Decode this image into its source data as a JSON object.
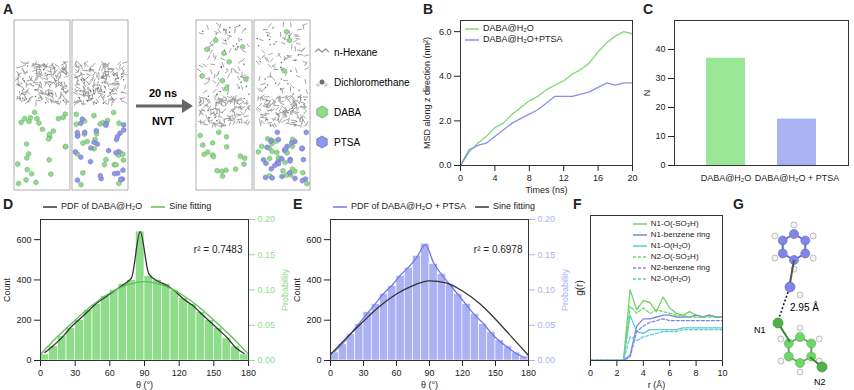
{
  "chart_data": [
    {
      "type": "diagram",
      "title": "A",
      "annotations": [
        "20 ns",
        "NVT"
      ],
      "items": [
        {
          "name": "n-Hexane",
          "color": "#9a9a9a"
        },
        {
          "name": "Dichloromethane",
          "color": "#6e6e6e"
        },
        {
          "name": "DABA",
          "color": "#8fdc8a"
        },
        {
          "name": "PTSA",
          "color": "#8f97ec"
        }
      ]
    },
    {
      "type": "line",
      "title": "B",
      "xlabel": "Times (ns)",
      "ylabel": "MSD along z direction (nm²)",
      "x": [
        0,
        1,
        2,
        3,
        4,
        5,
        6,
        7,
        8,
        9,
        10,
        11,
        12,
        13,
        14,
        15,
        16,
        17,
        18,
        19,
        20
      ],
      "xlim": [
        0,
        20
      ],
      "xticks": [
        0,
        4,
        8,
        12,
        16,
        20
      ],
      "ylim": [
        0,
        6.5
      ],
      "yticks": [
        0,
        2,
        4,
        6
      ],
      "legend": "top-left",
      "series": [
        {
          "name": "DABA@H₂O",
          "color": "#7ddc6f",
          "line_style": "solid",
          "values": [
            0,
            0.6,
            1.0,
            1.3,
            1.7,
            1.9,
            2.3,
            2.6,
            2.9,
            3.1,
            3.4,
            3.6,
            3.8,
            4.1,
            4.3,
            4.6,
            5.1,
            5.5,
            5.8,
            6.0,
            5.9
          ]
        },
        {
          "name": "DABA@H₂O+PTSA",
          "color": "#8a8ee6",
          "line_style": "solid",
          "values": [
            0,
            0.7,
            0.9,
            1.0,
            1.3,
            1.6,
            1.9,
            2.1,
            2.3,
            2.5,
            2.8,
            3.1,
            3.1,
            3.1,
            3.2,
            3.3,
            3.5,
            3.7,
            3.6,
            3.7,
            3.7
          ]
        }
      ]
    },
    {
      "type": "bar",
      "title": "C",
      "ylabel": "N",
      "categories": [
        "DABA@H₂O",
        "DABA@H₂O + PTSA"
      ],
      "values": [
        37,
        16
      ],
      "colors": [
        "#9be596",
        "#a9b2f3"
      ],
      "ylim": [
        0,
        50
      ],
      "yticks": [
        0,
        10,
        20,
        30,
        40
      ]
    },
    {
      "type": "histogram",
      "title": "D",
      "xlabel": "θ (°)",
      "ylabel": "Count",
      "y2label": "Probability",
      "color": "#8fdc8a",
      "bins": [
        0,
        7.5,
        15,
        22.5,
        30,
        37.5,
        45,
        52.5,
        60,
        67.5,
        75,
        82.5,
        90,
        97.5,
        105,
        112.5,
        120,
        127.5,
        135,
        142.5,
        150,
        157.5,
        165,
        172.5,
        180
      ],
      "counts": [
        30,
        70,
        120,
        160,
        200,
        250,
        280,
        320,
        350,
        380,
        400,
        640,
        420,
        400,
        380,
        350,
        310,
        280,
        240,
        200,
        160,
        110,
        70,
        30
      ],
      "xlim": [
        0,
        180
      ],
      "xticks": [
        0,
        30,
        60,
        90,
        120,
        150,
        180
      ],
      "ylim": [
        0,
        700
      ],
      "yticks": [
        0,
        200,
        400,
        600
      ],
      "y2lim": [
        0,
        0.2
      ],
      "y2ticks": [
        {
          "value": 0,
          "label": "0.00"
        },
        {
          "value": 0.05,
          "label": "0.05"
        },
        {
          "value": 0.1,
          "label": "0.10"
        },
        {
          "value": 0.15,
          "label": "0.15"
        },
        {
          "value": 0.2,
          "label": "0.20"
        }
      ],
      "legend": "top",
      "annotations": [
        "r² = 0.7483"
      ],
      "series": [
        {
          "name": "PDF of DABA@H₂O",
          "color": "#333333",
          "line_style": "solid",
          "x": [
            3.75,
            11.25,
            18.75,
            26.25,
            33.75,
            41.25,
            48.75,
            56.25,
            63.75,
            71.25,
            78.75,
            86.25,
            93.75,
            101.25,
            108.75,
            116.25,
            123.75,
            131.25,
            138.75,
            146.25,
            153.75,
            161.25,
            168.75,
            176.25
          ],
          "values": [
            40,
            75,
            115,
            165,
            205,
            245,
            285,
            315,
            345,
            375,
            410,
            640,
            430,
            395,
            375,
            345,
            305,
            275,
            235,
            195,
            155,
            115,
            65,
            35
          ]
        },
        {
          "name": "Sine fitting",
          "color": "#5cc255",
          "line_style": "solid",
          "x": [
            0,
            15,
            30,
            45,
            60,
            75,
            90,
            105,
            120,
            135,
            150,
            165,
            180
          ],
          "values": [
            30,
            120,
            200,
            275,
            335,
            375,
            392,
            375,
            335,
            275,
            200,
            120,
            30
          ]
        }
      ]
    },
    {
      "type": "histogram",
      "title": "E",
      "xlabel": "θ (°)",
      "ylabel": "Count",
      "y2label": "Probability",
      "color": "#aab2f3",
      "bins": [
        0,
        7.5,
        15,
        22.5,
        30,
        37.5,
        45,
        52.5,
        60,
        67.5,
        75,
        82.5,
        90,
        97.5,
        105,
        112.5,
        120,
        127.5,
        135,
        142.5,
        150,
        157.5,
        165,
        172.5,
        180
      ],
      "counts": [
        40,
        80,
        130,
        180,
        240,
        280,
        330,
        370,
        420,
        460,
        520,
        580,
        480,
        430,
        380,
        330,
        280,
        230,
        180,
        140,
        100,
        70,
        40,
        20
      ],
      "xlim": [
        0,
        180
      ],
      "xticks": [
        0,
        30,
        60,
        90,
        120,
        150,
        180
      ],
      "ylim": [
        0,
        700
      ],
      "yticks": [
        0,
        200,
        400,
        600
      ],
      "y2lim": [
        0,
        0.2
      ],
      "y2ticks": [
        {
          "value": 0,
          "label": "0.00"
        },
        {
          "value": 0.05,
          "label": "0.05"
        },
        {
          "value": 0.1,
          "label": "0.10"
        },
        {
          "value": 0.15,
          "label": "0.15"
        },
        {
          "value": 0.2,
          "label": "0.20"
        }
      ],
      "legend": "top",
      "annotations": [
        "r² = 0.6978"
      ],
      "series": [
        {
          "name": "PDF of DABA@H₂O + PTSA",
          "color": "#6f78e0",
          "line_style": "solid",
          "x": [
            3.75,
            11.25,
            18.75,
            26.25,
            33.75,
            41.25,
            48.75,
            56.25,
            63.75,
            71.25,
            78.75,
            86.25,
            93.75,
            101.25,
            108.75,
            116.25,
            123.75,
            131.25,
            138.75,
            146.25,
            153.75,
            161.25,
            168.75,
            176.25
          ],
          "values": [
            45,
            85,
            135,
            185,
            235,
            285,
            335,
            375,
            425,
            465,
            515,
            575,
            485,
            425,
            375,
            325,
            275,
            225,
            185,
            135,
            95,
            65,
            35,
            15
          ]
        },
        {
          "name": "Sine fitting",
          "color": "#333333",
          "line_style": "solid",
          "x": [
            0,
            15,
            30,
            45,
            60,
            75,
            90,
            105,
            120,
            135,
            150,
            165,
            180
          ],
          "values": [
            30,
            115,
            195,
            270,
            330,
            372,
            395,
            385,
            345,
            285,
            205,
            115,
            25
          ]
        }
      ]
    },
    {
      "type": "line",
      "title": "F",
      "xlabel": "r (Å)",
      "ylabel": "g(r)",
      "x": [
        0,
        0.5,
        1,
        1.5,
        2,
        2.5,
        3,
        3.5,
        4,
        4.5,
        5,
        5.5,
        6,
        6.5,
        7,
        7.5,
        8,
        8.5,
        9,
        9.5,
        10
      ],
      "xlim": [
        0,
        10
      ],
      "xticks": [
        0,
        2,
        4,
        6,
        8,
        10
      ],
      "ylim": [
        0,
        8
      ],
      "tick_labels": "x",
      "legend": "top-right",
      "series": [
        {
          "name": "N1-O(-SO₃H)",
          "color": "#6fd66a",
          "line_style": "solid",
          "values": [
            0,
            0,
            0,
            0,
            0,
            0,
            3.9,
            2.8,
            3.3,
            3.2,
            2.7,
            3.5,
            2.9,
            2.6,
            2.5,
            2.7,
            2.5,
            2.4,
            2.5,
            2.4,
            2.4
          ]
        },
        {
          "name": "N1-benzene ring",
          "color": "#7f86e8",
          "line_style": "solid",
          "values": [
            0,
            0,
            0,
            0,
            0,
            0,
            0.3,
            1.9,
            2.3,
            2.3,
            2.4,
            2.5,
            2.5,
            2.4,
            2.4,
            2.4,
            2.5,
            2.4,
            2.5,
            2.4,
            2.4
          ]
        },
        {
          "name": "N1-O(H₂O)",
          "color": "#5ec8d8",
          "line_style": "solid",
          "values": [
            0,
            0,
            0,
            0,
            0,
            0,
            2.5,
            1.6,
            1.5,
            1.7,
            1.7,
            1.7,
            1.7,
            1.7,
            1.8,
            1.8,
            1.8,
            1.8,
            1.8,
            1.8,
            1.8
          ]
        },
        {
          "name": "N2-O(-SO₃H)",
          "color": "#6fd66a",
          "line_style": "dashed",
          "values": [
            0,
            0,
            0,
            0,
            0,
            0,
            3.0,
            2.6,
            2.9,
            2.6,
            2.8,
            2.7,
            2.6,
            2.5,
            2.5,
            2.4,
            2.4,
            2.4,
            2.4,
            2.4,
            2.4
          ]
        },
        {
          "name": "N2-benzene ring",
          "color": "#7f86e8",
          "line_style": "dashed",
          "values": [
            0,
            0,
            0,
            0,
            0,
            0,
            0.2,
            1.6,
            1.9,
            2.1,
            2.2,
            2.3,
            2.2,
            2.2,
            2.2,
            2.2,
            2.2,
            2.2,
            2.2,
            2.2,
            2.2
          ]
        },
        {
          "name": "N2-O(H₂O)",
          "color": "#5ec8d8",
          "line_style": "dashed",
          "values": [
            0,
            0,
            0,
            0,
            0,
            0,
            1.3,
            1.1,
            1.3,
            1.4,
            1.5,
            1.6,
            1.6,
            1.6,
            1.7,
            1.7,
            1.7,
            1.7,
            1.7,
            1.7,
            1.7
          ]
        }
      ]
    },
    {
      "type": "diagram",
      "title": "G",
      "annotations": [
        "2.95 Å",
        "N1",
        "N2"
      ]
    }
  ]
}
